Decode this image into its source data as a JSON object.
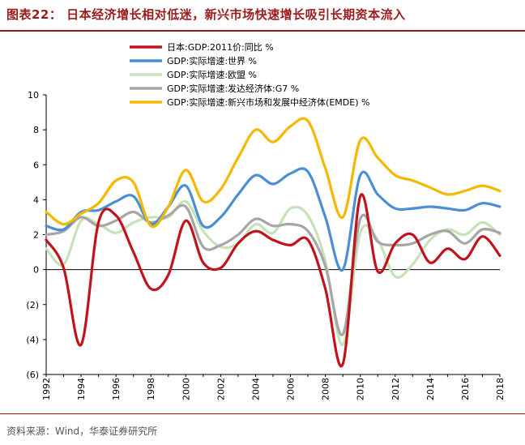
{
  "title": "图表22： 日本经济增长相对低迷，新兴市场快速增长吸引长期资本流入",
  "source": "资料来源：Wind，华泰证券研究所",
  "chart_data": {
    "type": "line",
    "x_tick_labels": [
      "1992",
      "1994",
      "1996",
      "1998",
      "2000",
      "2002",
      "2004",
      "2006",
      "2008",
      "2010",
      "2012",
      "2014",
      "2016",
      "2018"
    ],
    "y_tick_labels": [
      "10",
      "8",
      "6",
      "4",
      "2",
      "0",
      "(2)",
      "(4)",
      "(6)"
    ],
    "y_ticks": [
      10,
      8,
      6,
      4,
      2,
      0,
      -2,
      -4,
      -6
    ],
    "ylim": [
      -6,
      10
    ],
    "xlim": [
      1992,
      2018
    ],
    "legend_position": "top-left",
    "x": [
      1992,
      1993,
      1994,
      1995,
      1996,
      1997,
      1998,
      1999,
      2000,
      2001,
      2002,
      2003,
      2004,
      2005,
      2006,
      2007,
      2008,
      2009,
      2010,
      2011,
      2012,
      2013,
      2014,
      2015,
      2016,
      2017,
      2018
    ],
    "series": [
      {
        "name": "日本:GDP:2011价:同比 %",
        "color": "#c0141c",
        "values": [
          1.7,
          0.1,
          -4.3,
          2.7,
          3.1,
          1.0,
          -1.1,
          -0.3,
          2.8,
          0.4,
          0.1,
          1.5,
          2.2,
          1.7,
          1.4,
          1.7,
          -1.1,
          -5.4,
          4.2,
          -0.1,
          1.5,
          2.0,
          0.4,
          1.2,
          0.6,
          1.9,
          0.8
        ]
      },
      {
        "name": "GDP:实际增速:世界 %",
        "color": "#4a8fd6",
        "values": [
          2.5,
          2.3,
          3.3,
          3.4,
          3.9,
          4.2,
          2.6,
          3.6,
          4.8,
          2.5,
          3.0,
          4.3,
          5.4,
          4.9,
          5.5,
          5.6,
          3.0,
          0.0,
          5.4,
          4.3,
          3.5,
          3.5,
          3.6,
          3.5,
          3.4,
          3.8,
          3.6
        ]
      },
      {
        "name": "GDP:实际增速:欧盟 %",
        "color": "#c6e2b8",
        "values": [
          1.2,
          0.3,
          2.8,
          2.6,
          2.1,
          2.7,
          3.0,
          3.0,
          3.9,
          2.2,
          1.3,
          1.5,
          2.6,
          2.1,
          3.5,
          3.1,
          0.5,
          -4.3,
          2.1,
          1.7,
          -0.4,
          0.3,
          1.7,
          2.3,
          2.0,
          2.7,
          2.0
        ]
      },
      {
        "name": "GDP:实际增速:发达经济体:G7 %",
        "color": "#a6a6a6",
        "values": [
          2.0,
          2.2,
          3.0,
          2.5,
          2.8,
          3.3,
          2.7,
          3.1,
          3.6,
          1.3,
          1.4,
          2.0,
          2.9,
          2.5,
          2.6,
          2.2,
          0.2,
          -3.7,
          2.9,
          1.6,
          1.4,
          1.5,
          2.0,
          2.2,
          1.5,
          2.3,
          2.1
        ]
      },
      {
        "name": "GDP:实际增速:新兴市场和发展中经济体(EMDE) %",
        "color": "#f5b800",
        "values": [
          3.3,
          2.6,
          3.2,
          3.8,
          5.1,
          5.0,
          2.5,
          3.6,
          5.7,
          3.9,
          4.6,
          6.4,
          8.0,
          7.3,
          8.2,
          8.5,
          5.8,
          3.0,
          7.4,
          6.4,
          5.4,
          5.1,
          4.7,
          4.3,
          4.5,
          4.8,
          4.5
        ]
      }
    ]
  }
}
